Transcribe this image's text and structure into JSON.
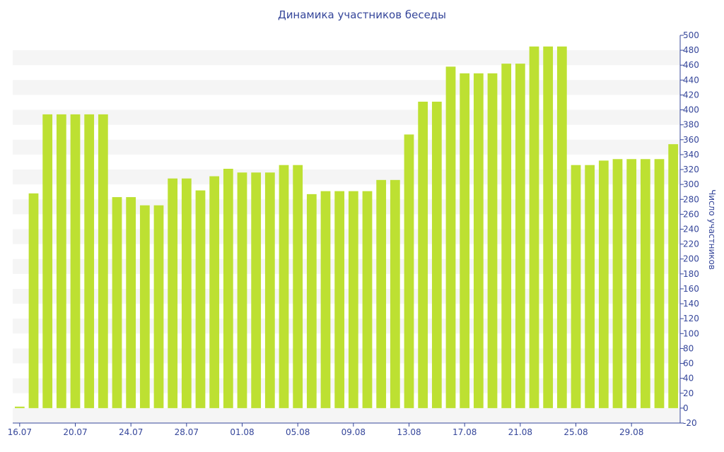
{
  "chart_data": {
    "type": "bar",
    "title": "Динамика участников беседы",
    "xlabel": "",
    "ylabel": "Число участников",
    "ylim": [
      -20,
      500
    ],
    "y_ticks": [
      -20,
      0,
      20,
      40,
      60,
      80,
      100,
      120,
      140,
      160,
      180,
      200,
      220,
      240,
      260,
      280,
      300,
      320,
      340,
      360,
      380,
      400,
      420,
      440,
      460,
      480,
      500
    ],
    "x_tick_labels": [
      "16.07",
      "20.07",
      "24.07",
      "28.07",
      "01.08",
      "05.08",
      "09.08",
      "13.08",
      "17.08",
      "21.08",
      "25.08",
      "29.08"
    ],
    "categories": [
      "16.07",
      "17.07",
      "18.07",
      "19.07",
      "20.07",
      "21.07",
      "22.07",
      "23.07",
      "24.07",
      "25.07",
      "26.07",
      "27.07",
      "28.07",
      "29.07",
      "30.07",
      "31.07",
      "01.08",
      "02.08",
      "03.08",
      "04.08",
      "05.08",
      "06.08",
      "07.08",
      "08.08",
      "09.08",
      "10.08",
      "11.08",
      "12.08",
      "13.08",
      "14.08",
      "15.08",
      "16.08",
      "17.08",
      "18.08",
      "19.08",
      "20.08",
      "21.08",
      "22.08",
      "23.08",
      "24.08",
      "25.08",
      "26.08",
      "27.08",
      "28.08",
      "29.08",
      "30.08",
      "31.08",
      "01.09"
    ],
    "values": [
      2,
      288,
      394,
      394,
      394,
      394,
      394,
      283,
      283,
      272,
      272,
      308,
      308,
      292,
      311,
      321,
      316,
      316,
      316,
      326,
      326,
      287,
      291,
      291,
      291,
      291,
      306,
      306,
      367,
      411,
      411,
      458,
      449,
      449,
      449,
      462,
      462,
      485,
      485,
      485,
      326,
      326,
      332,
      334,
      334,
      334,
      334,
      354
    ],
    "bar_color": "#bde032",
    "grid": true,
    "grid_band_color": "#f5f5f5",
    "axis_color": "#35469a"
  }
}
